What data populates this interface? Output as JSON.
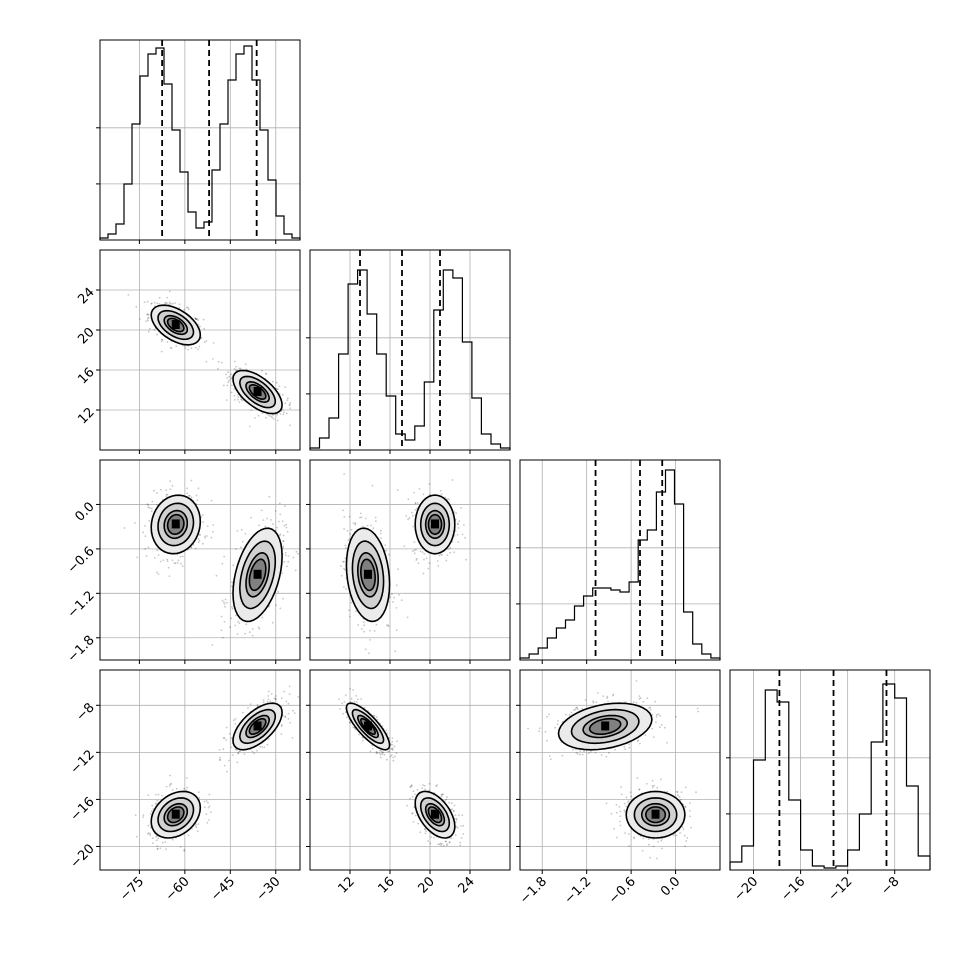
{
  "chart_data": {
    "type": "corner",
    "parameters": [
      {
        "key": "p0",
        "range": [
          -88,
          -22
        ],
        "ticks": [
          -75,
          -60,
          -45,
          -30
        ],
        "tick_labels": [
          "−75",
          "−60",
          "−45",
          "−30"
        ],
        "quantiles": [
          -67.5,
          -52.0,
          -36.3
        ]
      },
      {
        "key": "p1",
        "range": [
          8,
          28
        ],
        "ticks": [
          12,
          16,
          20,
          24
        ],
        "tick_labels": [
          "12",
          "16",
          "20",
          "24"
        ],
        "quantiles": [
          13.0,
          17.2,
          21.0
        ]
      },
      {
        "key": "p2",
        "range": [
          -2.1,
          0.6
        ],
        "ticks": [
          -1.8,
          -1.2,
          -0.6,
          0.0
        ],
        "tick_labels": [
          "−1.8",
          "−1.2",
          "−0.6",
          "0.0"
        ],
        "quantiles": [
          -1.08,
          -0.48,
          -0.18
        ]
      },
      {
        "key": "p3",
        "range": [
          -22,
          -5
        ],
        "ticks": [
          -20,
          -16,
          -12,
          -8
        ],
        "tick_labels": [
          "−20",
          "−16",
          "−12",
          "−8"
        ],
        "quantiles": [
          -17.8,
          -13.2,
          -8.7
        ]
      }
    ],
    "histograms": [
      [
        0.01,
        0.03,
        0.08,
        0.28,
        0.58,
        0.82,
        0.93,
        0.96,
        0.78,
        0.55,
        0.34,
        0.14,
        0.06,
        0.09,
        0.35,
        0.58,
        0.8,
        0.93,
        0.97,
        0.8,
        0.55,
        0.3,
        0.12,
        0.03,
        0.01
      ],
      [
        0.01,
        0.06,
        0.16,
        0.48,
        0.83,
        0.9,
        0.68,
        0.48,
        0.27,
        0.08,
        0.05,
        0.12,
        0.34,
        0.7,
        0.9,
        0.86,
        0.54,
        0.26,
        0.08,
        0.03,
        0.01
      ],
      [
        0.01,
        0.03,
        0.06,
        0.11,
        0.16,
        0.2,
        0.27,
        0.32,
        0.36,
        0.36,
        0.35,
        0.34,
        0.39,
        0.6,
        0.65,
        0.84,
        0.95,
        0.78,
        0.24,
        0.08,
        0.03,
        0.01
      ],
      [
        0.04,
        0.12,
        0.55,
        0.9,
        0.84,
        0.35,
        0.1,
        0.02,
        0.01,
        0.02,
        0.1,
        0.28,
        0.64,
        0.93,
        0.86,
        0.42,
        0.07
      ]
    ],
    "modes": [
      {
        "weight": 0.5,
        "mean": [
          -63,
          20.5,
          -0.27,
          -17.3
        ],
        "sd": [
          4.5,
          1.1,
          0.22,
          1.1
        ],
        "corr": [
          [
            1,
            -0.5,
            0.1,
            0.3
          ],
          [
            -0.5,
            1,
            0,
            -0.5
          ],
          [
            0.1,
            0,
            1,
            0
          ],
          [
            0.3,
            -0.5,
            0,
            1
          ]
        ]
      },
      {
        "weight": 0.5,
        "mean": [
          -36,
          13.8,
          -0.95,
          -9.8
        ],
        "sd": [
          4.5,
          1.2,
          0.35,
          1.1
        ],
        "corr": [
          [
            1,
            -0.6,
            0.4,
            0.6
          ],
          [
            -0.6,
            1,
            -0.2,
            -0.8
          ],
          [
            0.4,
            -0.2,
            1,
            0.3
          ],
          [
            0.6,
            -0.8,
            0.3,
            1
          ]
        ]
      }
    ],
    "contour_levels": [
      0.6,
      0.85,
      1.3,
      1.8
    ],
    "grid": true
  }
}
